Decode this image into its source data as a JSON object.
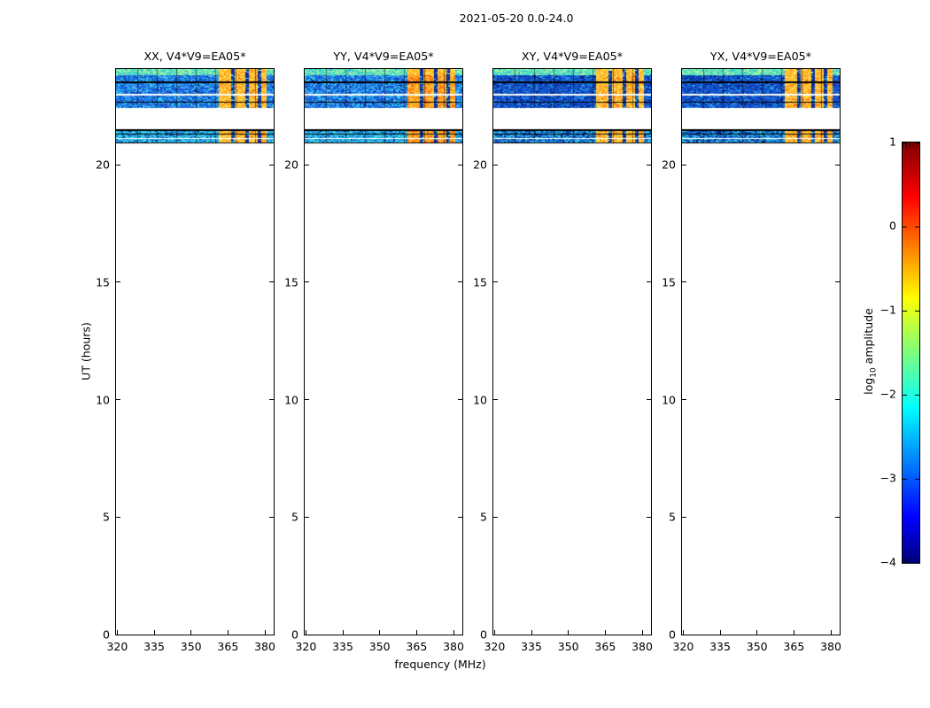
{
  "figure": {
    "title": "2021-05-20 0.0-24.0",
    "xlabel": "frequency (MHz)",
    "ylabel": "UT (hours)",
    "colorbar_label": {
      "prefix": "log",
      "sub": "10",
      "rest": " amplitude"
    }
  },
  "chart_data": {
    "type": "heatmap",
    "title": "2021-05-20 0.0-24.0",
    "xlabel": "frequency (MHz)",
    "ylabel": "UT (hours)",
    "subplots": [
      {
        "label": "XX, V4*V9=EA05*",
        "polarization": "XX",
        "style": "parallel"
      },
      {
        "label": "YY, V4*V9=EA05*",
        "polarization": "YY",
        "style": "parallel-hot"
      },
      {
        "label": "XY, V4*V9=EA05*",
        "polarization": "XY",
        "style": "cross"
      },
      {
        "label": "YX, V4*V9=EA05*",
        "polarization": "YX",
        "style": "cross"
      }
    ],
    "xlim": [
      319.5,
      383.6
    ],
    "ylim": [
      0,
      24.07
    ],
    "xticks": [
      320,
      335,
      350,
      365,
      380
    ],
    "yticks": [
      0,
      5,
      10,
      15,
      20
    ],
    "colorbar": {
      "label": "log10 amplitude",
      "vmin": -4,
      "vmax": 1,
      "ticks": [
        1,
        0,
        -1,
        -2,
        -3,
        -4
      ],
      "colormap": "jet",
      "jet_stops": [
        [
          "#7f0000",
          0
        ],
        [
          "#ff0000",
          13
        ],
        [
          "#ffff00",
          37
        ],
        [
          "#7dff7d",
          50
        ],
        [
          "#00ffff",
          63
        ],
        [
          "#0000ff",
          89
        ],
        [
          "#00007f",
          100
        ]
      ]
    },
    "time_bands": [
      {
        "t0": 23.82,
        "t1": 24.07,
        "kind": "bright",
        "sep_above": 0,
        "sep_below": 0
      },
      {
        "t0": 23.54,
        "t1": 23.79,
        "kind": "normal",
        "sep_above": 0,
        "sep_below": 0
      },
      {
        "t0": 23.0,
        "t1": 23.47,
        "kind": "normal",
        "sep_above": 2,
        "sep_below": 0
      },
      {
        "t0": 22.69,
        "t1": 22.94,
        "kind": "normal",
        "sep_above": 0,
        "sep_below": 0
      },
      {
        "t0": 22.41,
        "t1": 22.64,
        "kind": "normal",
        "sep_above": 1,
        "sep_below": 0
      },
      {
        "t0": 21.3,
        "t1": 21.45,
        "kind": "thin",
        "sep_above": 2,
        "sep_below": 0
      },
      {
        "t0": 21.13,
        "t1": 21.28,
        "kind": "thin",
        "sep_above": 1,
        "sep_below": 0
      },
      {
        "t0": 20.96,
        "t1": 21.1,
        "kind": "thin",
        "sep_above": 0,
        "sep_below": 1
      }
    ],
    "rfi_mhz": [
      360.8,
      380.2
    ],
    "grid_mhz": [
      328,
      336,
      344,
      352,
      360,
      368,
      376
    ],
    "rfi_stripe_mhz": [
      366.8,
      372.3,
      377.5
    ],
    "palette": {
      "parallel": {
        "base": "#1e6ce0",
        "speckle": "#2ed2f2",
        "dark": "#0a2fa0",
        "light": "#5aa8f5"
      },
      "cross": {
        "base": "#1254d0",
        "speckle": "#28aae6",
        "dark": "#071f80",
        "light": "#2e7ae0"
      },
      "bright_band": {
        "base": "#44dcc8",
        "speckle": "#a6f2a0",
        "dark": "#1e9ce6",
        "light": "#d8fbe0"
      },
      "thin_parallel": {
        "base": "#2293e8",
        "speckle": "#38dce0",
        "dark": "#0a2fa0",
        "light": "#5ab8f0"
      },
      "thin_cross": {
        "base": "#1668d8",
        "speckle": "#30c0e0",
        "dark": "#071f80",
        "light": "#2e8ae0"
      },
      "rfi": {
        "main": "#ffaa1e",
        "alt": "#ffc83c",
        "yellow": "#ffe45a",
        "hot": "#ff6414",
        "stripe": "#0a2fa0"
      }
    }
  }
}
